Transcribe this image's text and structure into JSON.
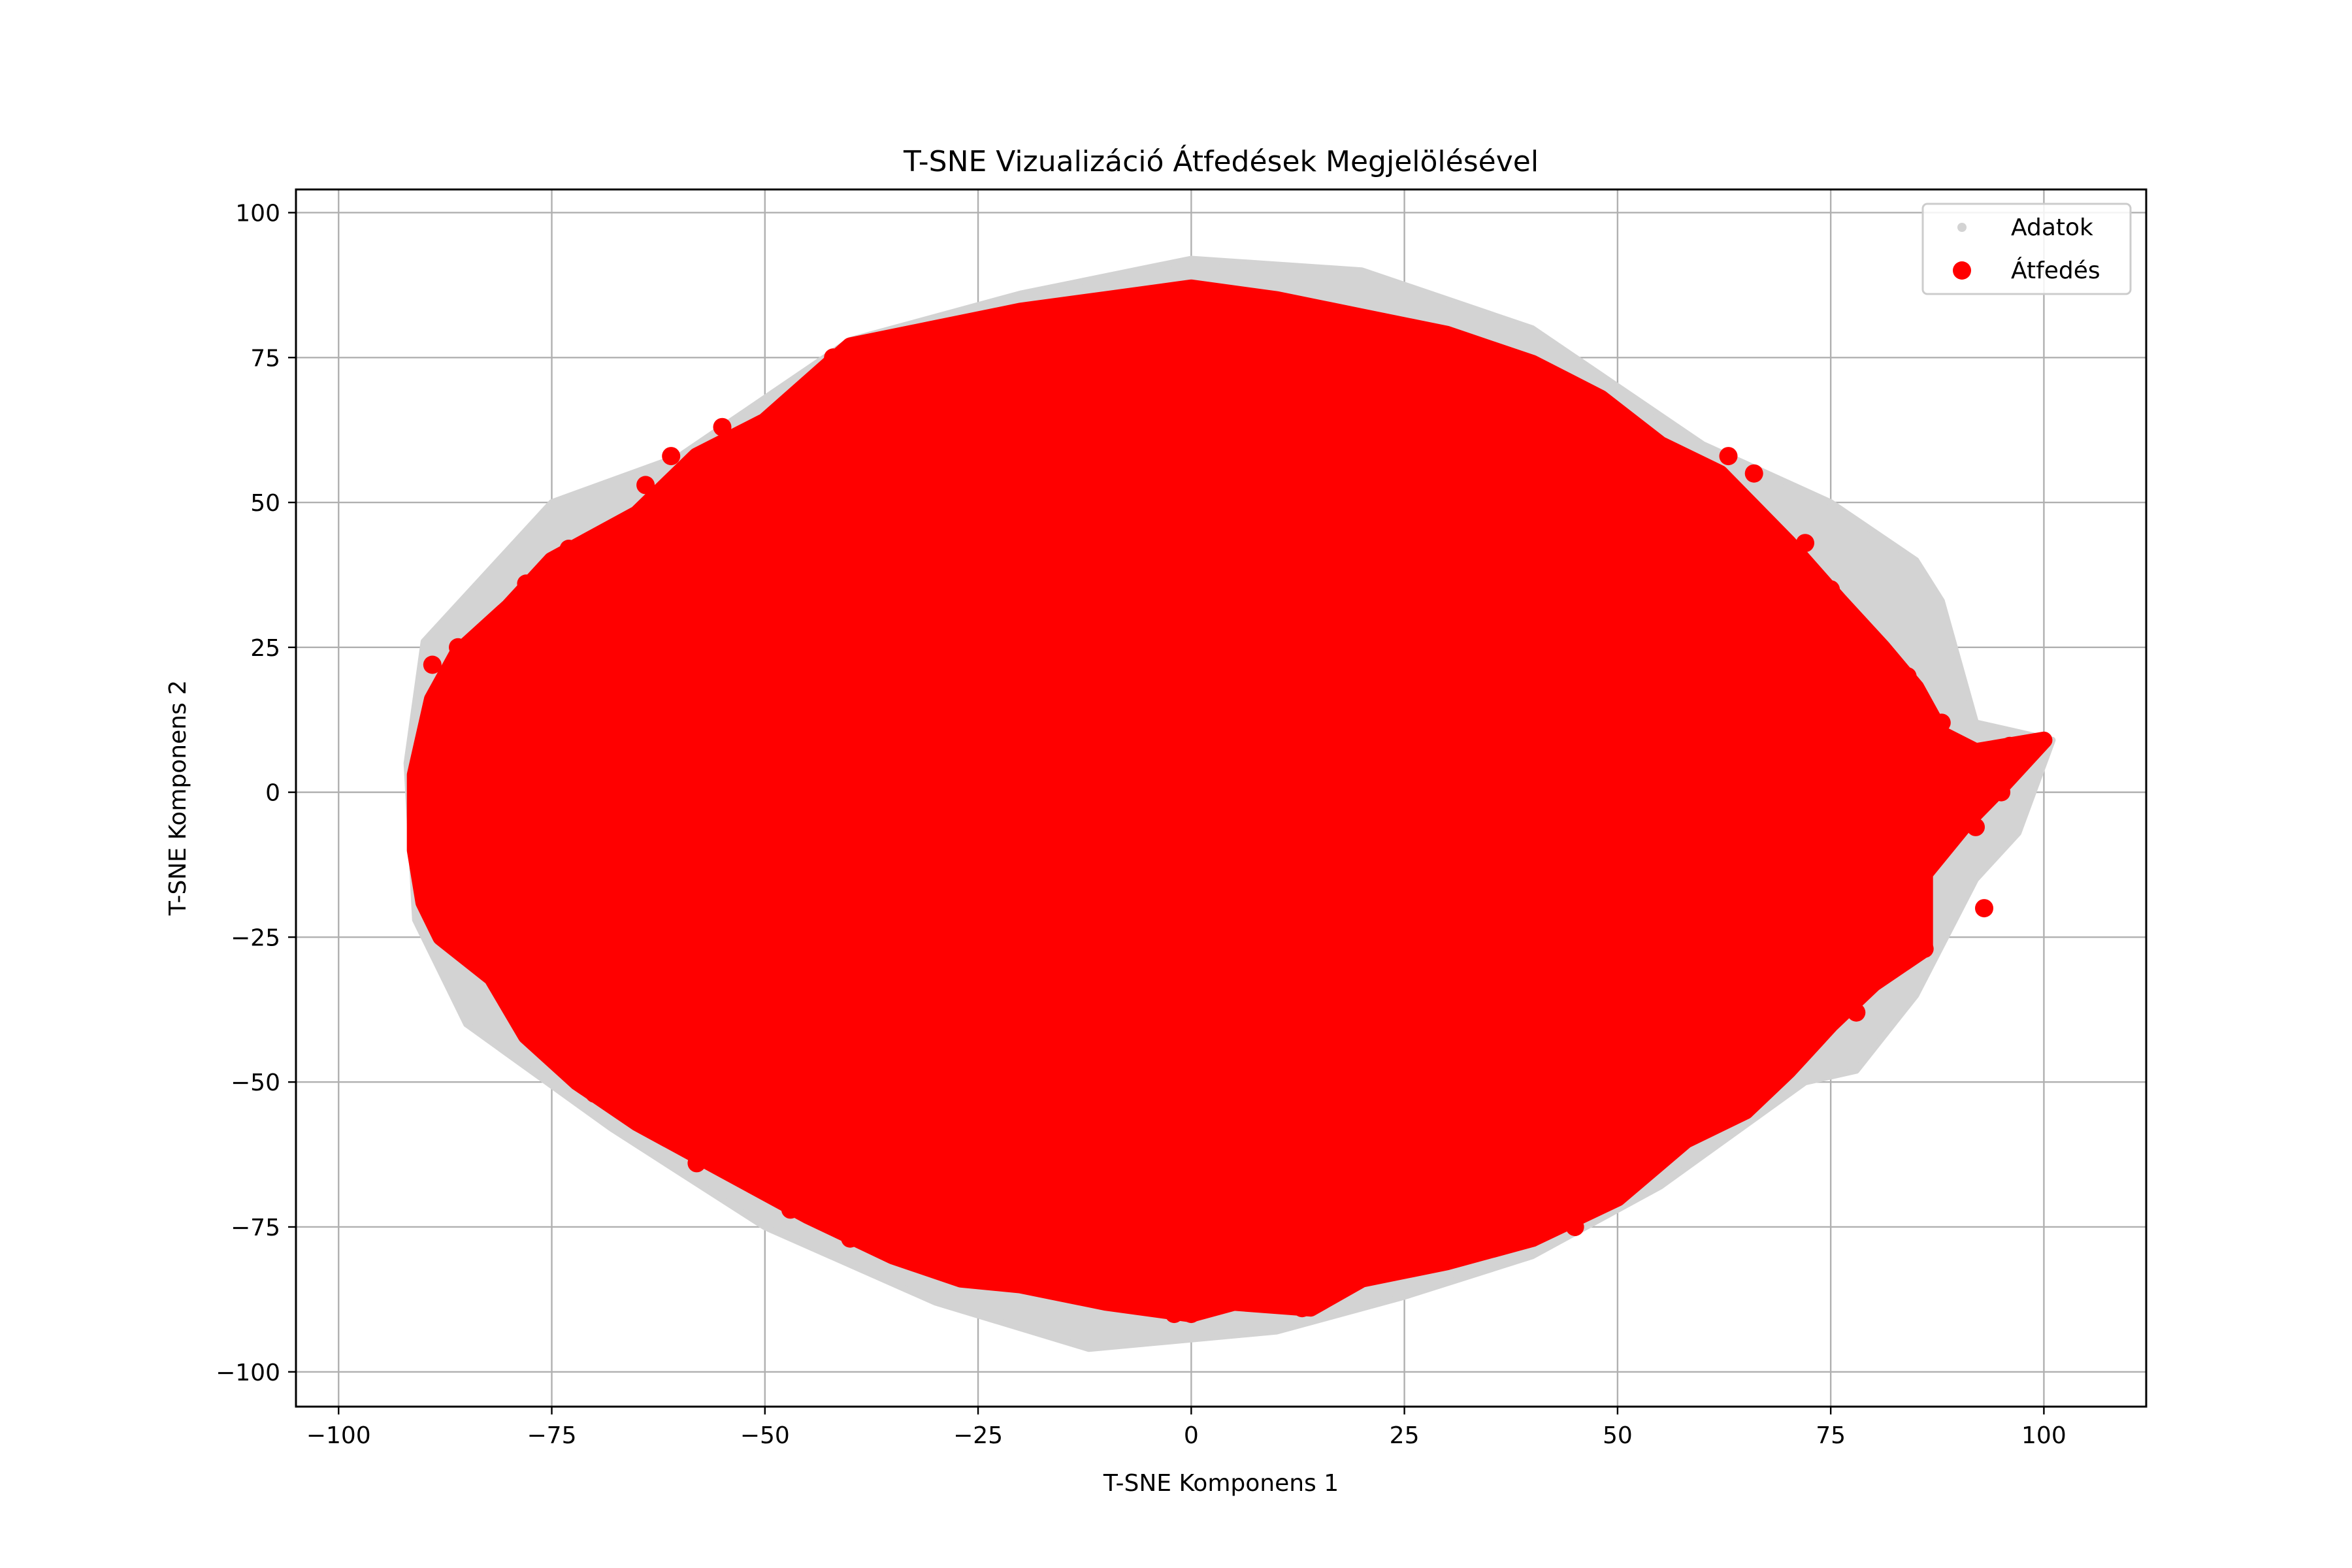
{
  "chart_data": {
    "type": "scatter",
    "title": "T-SNE Vizualizáció Átfedések Megjelölésével",
    "xlabel": "T-SNE Komponens 1",
    "ylabel": "T-SNE Komponens 2",
    "xlim": [
      -105,
      112
    ],
    "ylim": [
      -106,
      104
    ],
    "xticks": [
      -100,
      -75,
      -50,
      -25,
      0,
      25,
      50,
      75,
      100
    ],
    "yticks": [
      -100,
      -75,
      -50,
      -25,
      0,
      25,
      50,
      75,
      100
    ],
    "xtick_labels": [
      "−100",
      "−75",
      "−50",
      "−25",
      "0",
      "25",
      "50",
      "75",
      "100"
    ],
    "ytick_labels": [
      "−100",
      "−75",
      "−50",
      "−25",
      "0",
      "25",
      "50",
      "75",
      "100"
    ],
    "grid": true,
    "legend_position": "upper-right",
    "series": [
      {
        "name": "Adatok",
        "color": "#d3d3d3",
        "marker": "small-dot",
        "extent": {
          "x": [
            -92,
            101
          ],
          "y": [
            -96,
            93
          ]
        },
        "outline_points": [
          [
            -90,
            26
          ],
          [
            -75,
            50
          ],
          [
            -60,
            58
          ],
          [
            -40,
            78
          ],
          [
            -20,
            86
          ],
          [
            0,
            92
          ],
          [
            20,
            90
          ],
          [
            40,
            80
          ],
          [
            60,
            60
          ],
          [
            75,
            50
          ],
          [
            85,
            40
          ],
          [
            88,
            33
          ],
          [
            92,
            12
          ],
          [
            101,
            9
          ],
          [
            97,
            -7
          ],
          [
            92,
            -15
          ],
          [
            85,
            -35
          ],
          [
            78,
            -48
          ],
          [
            72,
            -50
          ],
          [
            55,
            -68
          ],
          [
            40,
            -80
          ],
          [
            25,
            -87
          ],
          [
            10,
            -93
          ],
          [
            -12,
            -96
          ],
          [
            -30,
            -88
          ],
          [
            -50,
            -75
          ],
          [
            -68,
            -58
          ],
          [
            -85,
            -40
          ],
          [
            -91,
            -22
          ],
          [
            -92,
            5
          ]
        ]
      },
      {
        "name": "Átfedés",
        "color": "#ff0000",
        "marker": "dot",
        "extent": {
          "x": [
            -91,
            100
          ],
          "y": [
            -91,
            88
          ]
        },
        "outline_points": [
          [
            -91,
            3
          ],
          [
            -89,
            16
          ],
          [
            -86,
            24
          ],
          [
            -80,
            32
          ],
          [
            -75,
            40
          ],
          [
            -65,
            48
          ],
          [
            -58,
            58
          ],
          [
            -50,
            64
          ],
          [
            -40,
            77
          ],
          [
            -30,
            80
          ],
          [
            -20,
            83
          ],
          [
            -10,
            85
          ],
          [
            0,
            87
          ],
          [
            10,
            85
          ],
          [
            20,
            82
          ],
          [
            30,
            79
          ],
          [
            40,
            74
          ],
          [
            48,
            68
          ],
          [
            55,
            60
          ],
          [
            62,
            55
          ],
          [
            70,
            43
          ],
          [
            76,
            33
          ],
          [
            81,
            25
          ],
          [
            85,
            18
          ],
          [
            88,
            10
          ],
          [
            92,
            7
          ],
          [
            100,
            9
          ],
          [
            95,
            1
          ],
          [
            91,
            -5
          ],
          [
            86,
            -14
          ],
          [
            86,
            -27
          ],
          [
            80,
            -33
          ],
          [
            75,
            -40
          ],
          [
            70,
            -48
          ],
          [
            65,
            -55
          ],
          [
            58,
            -60
          ],
          [
            50,
            -70
          ],
          [
            40,
            -77
          ],
          [
            30,
            -81
          ],
          [
            20,
            -84
          ],
          [
            14,
            -89
          ],
          [
            5,
            -88
          ],
          [
            0,
            -90
          ],
          [
            -10,
            -88
          ],
          [
            -20,
            -85
          ],
          [
            -27,
            -84
          ],
          [
            -35,
            -80
          ],
          [
            -45,
            -73
          ],
          [
            -55,
            -65
          ],
          [
            -65,
            -57
          ],
          [
            -72,
            -50
          ],
          [
            -78,
            -42
          ],
          [
            -82,
            -32
          ],
          [
            -88,
            -25
          ],
          [
            -90,
            -19
          ],
          [
            -91,
            -10
          ]
        ],
        "edge_points": [
          [
            -78,
            36
          ],
          [
            -73,
            42
          ],
          [
            -64,
            53
          ],
          [
            -61,
            58
          ],
          [
            -55,
            63
          ],
          [
            -45,
            70
          ],
          [
            -42,
            75
          ],
          [
            -30,
            78
          ],
          [
            -12,
            84
          ],
          [
            32,
            77
          ],
          [
            45,
            70
          ],
          [
            52,
            62
          ],
          [
            63,
            58
          ],
          [
            66,
            55
          ],
          [
            72,
            43
          ],
          [
            75,
            35
          ],
          [
            84,
            20
          ],
          [
            88,
            12
          ],
          [
            90,
            8
          ],
          [
            94,
            6
          ],
          [
            96,
            8
          ],
          [
            95,
            0
          ],
          [
            92,
            -6
          ],
          [
            93,
            -20
          ],
          [
            86,
            -27
          ],
          [
            83,
            -27
          ],
          [
            78,
            -38
          ],
          [
            62,
            -54
          ],
          [
            56,
            -62
          ],
          [
            50,
            -69
          ],
          [
            45,
            -75
          ],
          [
            25,
            -82
          ],
          [
            19,
            -84
          ],
          [
            14,
            -88
          ],
          [
            13,
            -89
          ],
          [
            3,
            -88
          ],
          [
            0,
            -90
          ],
          [
            -2,
            -90
          ],
          [
            -16,
            -85
          ],
          [
            -28,
            -83
          ],
          [
            -40,
            -77
          ],
          [
            -47,
            -72
          ],
          [
            -58,
            -64
          ],
          [
            -70,
            -52
          ],
          [
            -75,
            -45
          ],
          [
            -85,
            -28
          ],
          [
            -88,
            -20
          ],
          [
            -87,
            -13
          ],
          [
            -89,
            22
          ],
          [
            -87,
            16
          ],
          [
            -86,
            25
          ],
          [
            -82,
            27
          ],
          [
            -84,
            -10
          ],
          [
            -89,
            -18
          ],
          [
            -87,
            2
          ]
        ]
      }
    ]
  }
}
